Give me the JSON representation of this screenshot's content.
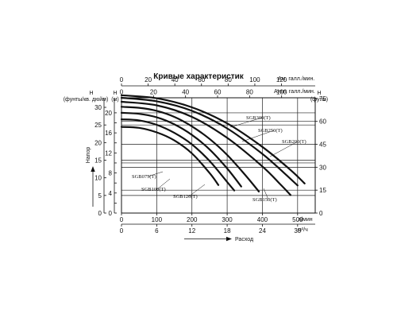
{
  "chart_data": {
    "type": "line",
    "title": "Кривые характеристик",
    "axes": {
      "top_upper": {
        "label": "Ам. галл./мин.",
        "ticks": [
          "0",
          "20",
          "40",
          "60",
          "80",
          "100",
          "120"
        ]
      },
      "top_lower": {
        "label": "Англ. галл./мин.",
        "ticks": [
          "0",
          "20",
          "40",
          "60",
          "80",
          "100"
        ]
      },
      "bottom_upper": {
        "label": "л/мин",
        "ticks": [
          "0",
          "100",
          "200",
          "300",
          "400",
          "500"
        ]
      },
      "bottom_lower": {
        "label": "м³/ч",
        "ticks": [
          "0",
          "6",
          "12",
          "18",
          "24",
          "30"
        ]
      },
      "left_outer": {
        "label_line1": "H",
        "label_line2": "(фунты/кв. дюйм)",
        "ticks": [
          "0",
          "5",
          "10",
          "15",
          "20",
          "25",
          "30"
        ]
      },
      "left_inner": {
        "label_line1": "H",
        "label_line2": "(м)",
        "ticks": [
          "0",
          "2",
          "4",
          "6",
          "8",
          "10",
          "12",
          "14",
          "16",
          "18",
          "20"
        ]
      },
      "right": {
        "label_line1": "H",
        "label_line2": "(футы)",
        "ticks": [
          "0",
          "15",
          "30",
          "45",
          "60",
          "75"
        ]
      },
      "x_title": "Расход",
      "y_title": "Напор",
      "xlim_l_per_min": [
        0,
        550
      ],
      "ylim_m": [
        0,
        23
      ]
    },
    "grid": true,
    "series": [
      {
        "name": "SGB075(T)",
        "x": [
          0,
          50,
          100,
          150,
          200,
          250,
          275
        ],
        "y": [
          17.2,
          17.0,
          16.1,
          14.5,
          11.9,
          8.0,
          5.6
        ]
      },
      {
        "name": "SGB100(T)",
        "x": [
          0,
          50,
          100,
          150,
          200,
          250,
          300,
          320
        ],
        "y": [
          18.7,
          18.5,
          17.6,
          16.0,
          13.7,
          10.4,
          6.2,
          4.5
        ]
      },
      {
        "name": "SGB120(T)",
        "x": [
          0,
          50,
          100,
          150,
          200,
          250,
          300,
          340
        ],
        "y": [
          20.0,
          19.8,
          19.1,
          17.7,
          15.6,
          12.7,
          8.9,
          5.3
        ]
      },
      {
        "name": "SGB150(T)",
        "x": [
          0,
          50,
          100,
          150,
          200,
          250,
          300,
          350,
          390
        ],
        "y": [
          21.2,
          21.0,
          20.4,
          19.2,
          17.3,
          14.8,
          11.6,
          7.7,
          4.3
        ]
      },
      {
        "name": "SGB200(T)",
        "x": [
          0,
          100,
          200,
          300,
          400,
          450,
          480
        ],
        "y": [
          22.2,
          21.5,
          19.2,
          15.0,
          9.3,
          5.8,
          3.6
        ]
      },
      {
        "name": "SGB250(T)",
        "x": [
          0,
          100,
          200,
          300,
          400,
          460,
          500
        ],
        "y": [
          23.0,
          22.3,
          20.4,
          16.9,
          11.8,
          8.1,
          5.5
        ]
      },
      {
        "name": "SGB300(T)",
        "x": [
          0,
          100,
          200,
          300,
          400,
          480,
          520
        ],
        "y": [
          23.5,
          22.9,
          21.1,
          17.9,
          13.2,
          8.6,
          5.9
        ]
      }
    ]
  }
}
